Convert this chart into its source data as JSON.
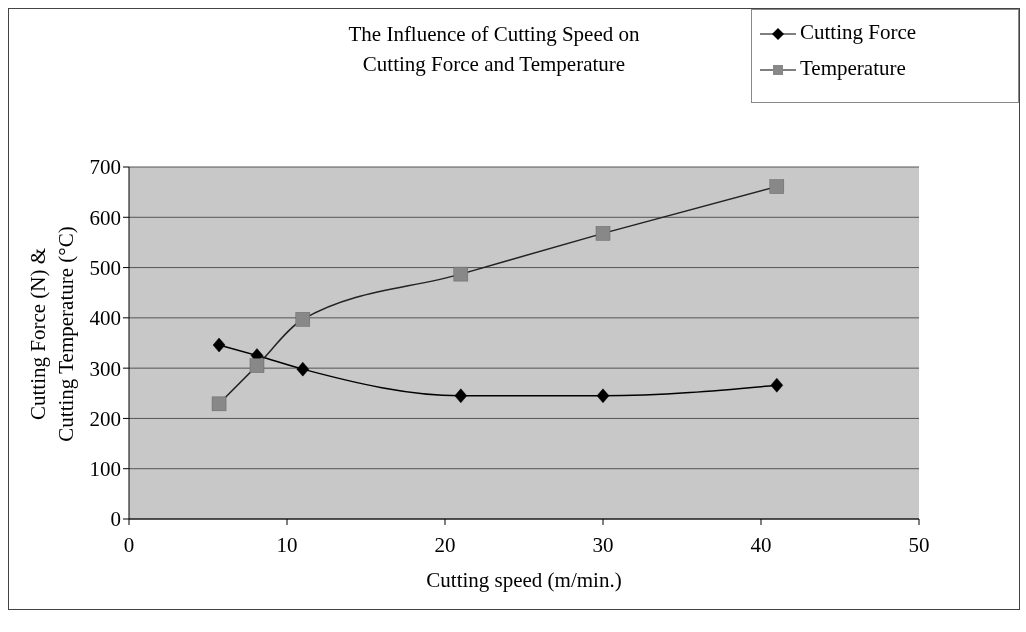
{
  "chart_data": {
    "type": "line",
    "title": "The Influence of Cutting Speed on\nCutting Force and Temperature",
    "xlabel": "Cutting speed (m/min.)",
    "ylabel": "Cutting Force (N) &\nCutting Temperature (°C)",
    "x": [
      5.7,
      8.1,
      11,
      21,
      30,
      41
    ],
    "series": [
      {
        "name": "Cutting Force",
        "color": "#000000",
        "marker": "diamond",
        "values": [
          346,
          325,
          298,
          245,
          245,
          266
        ]
      },
      {
        "name": "Temperature",
        "color": "#888888",
        "marker": "square",
        "values": [
          229,
          305,
          397,
          487,
          568,
          661
        ]
      }
    ],
    "xlim": [
      0,
      50
    ],
    "xticks": [
      0,
      10,
      20,
      30,
      40,
      50
    ],
    "ylim": [
      0,
      700
    ],
    "yticks": [
      0,
      100,
      200,
      300,
      400,
      500,
      600,
      700
    ],
    "grid": "y",
    "legend": "top right"
  }
}
